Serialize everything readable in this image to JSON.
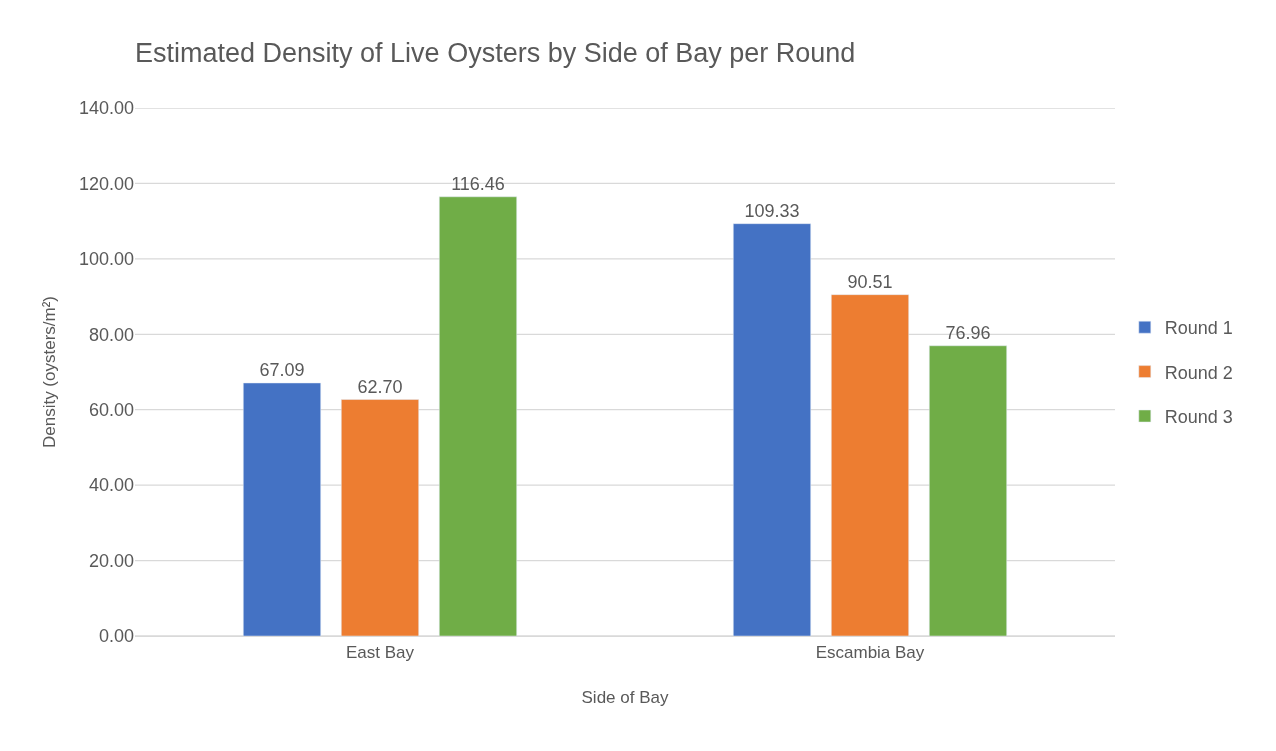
{
  "chart_data": {
    "type": "bar",
    "title": "Estimated Density of Live Oysters by Side of Bay per Round",
    "xlabel": "Side of Bay",
    "ylabel": "Density (oysters/m²)",
    "categories": [
      "East Bay",
      "Escambia Bay"
    ],
    "series": [
      {
        "name": "Round 1",
        "color": "#4472c4",
        "values": [
          67.09,
          109.33
        ],
        "value_labels": [
          "67.09",
          "109.33"
        ]
      },
      {
        "name": "Round 2",
        "color": "#ed7d31",
        "values": [
          62.7,
          90.51
        ],
        "value_labels": [
          "62.70",
          "90.51"
        ]
      },
      {
        "name": "Round 3",
        "color": "#70ad47",
        "values": [
          116.46,
          76.96
        ],
        "value_labels": [
          "116.46",
          "76.96"
        ]
      }
    ],
    "ylim": [
      0,
      140
    ],
    "yticks": [
      {
        "value": 0,
        "label": "0.00"
      },
      {
        "value": 20,
        "label": "20.00"
      },
      {
        "value": 40,
        "label": "40.00"
      },
      {
        "value": 60,
        "label": "60.00"
      },
      {
        "value": 80,
        "label": "80.00"
      },
      {
        "value": 100,
        "label": "100.00"
      },
      {
        "value": 120,
        "label": "120.00"
      },
      {
        "value": 140,
        "label": "140.00"
      }
    ],
    "grid": "y",
    "legend": "right"
  }
}
